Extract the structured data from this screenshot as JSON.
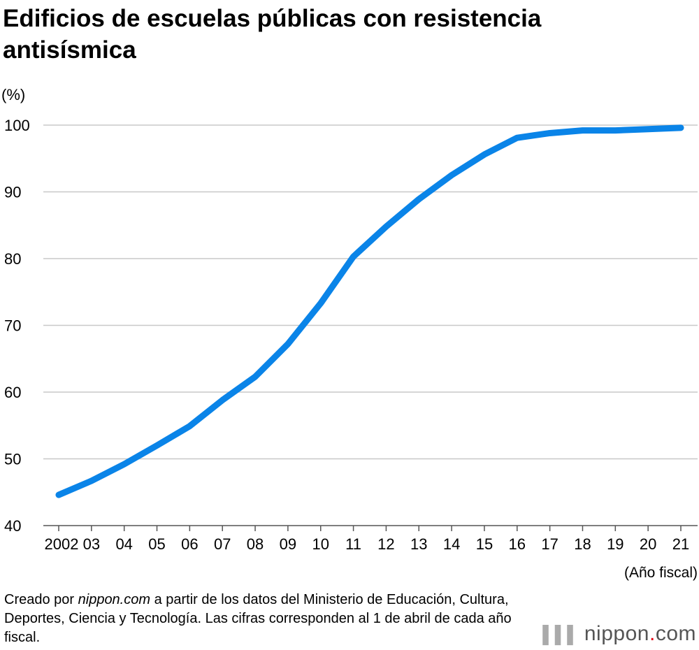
{
  "title": "Edificios de escuelas públicas con resistencia antisísmica",
  "note_prefix": "Creado por ",
  "note_brand": "nippon.com",
  "note_rest": " a partir de los datos del Ministerio de Educación, Cultura, Deportes, Ciencia y Tecnología. Las cifras corresponden al 1 de abril de cada año fiscal.",
  "logo": {
    "name": "nippon",
    "dot": ".",
    "tld": "com"
  },
  "chart_data": {
    "type": "line",
    "ylabel": "(%)",
    "xlabel": "(Año fiscal)",
    "ylim": [
      40,
      100
    ],
    "yticks": [
      40,
      50,
      60,
      70,
      80,
      90,
      100
    ],
    "grid": true,
    "categories": [
      "2002",
      "03",
      "04",
      "05",
      "06",
      "07",
      "08",
      "09",
      "10",
      "11",
      "12",
      "13",
      "14",
      "15",
      "16",
      "17",
      "18",
      "19",
      "20",
      "21"
    ],
    "values": [
      44.6,
      46.7,
      49.2,
      52.0,
      54.9,
      58.8,
      62.3,
      67.2,
      73.3,
      80.3,
      84.8,
      88.9,
      92.5,
      95.6,
      98.1,
      98.8,
      99.2,
      99.2,
      99.4,
      99.6
    ],
    "line_color": "#0a84e8"
  }
}
